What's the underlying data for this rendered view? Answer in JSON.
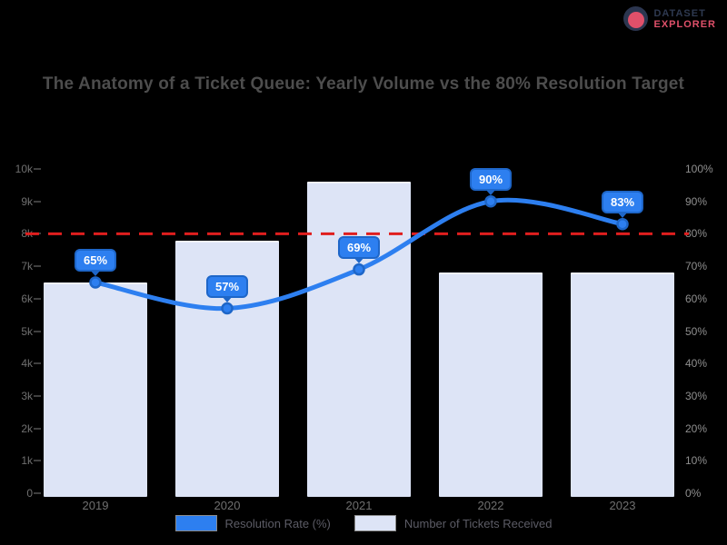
{
  "brand": {
    "line1": "DATASET",
    "line2": "EXPLORER",
    "colors": {
      "navy": "#2e3950",
      "red": "#e0506a"
    }
  },
  "title": "The Anatomy of a Ticket Queue: Yearly Volume vs the 80% Resolution Target",
  "chart_data": {
    "type": "bar",
    "subtype": "combo bar + smoothed line, dual axis",
    "categories": [
      "2019",
      "2020",
      "2021",
      "2022",
      "2023"
    ],
    "series": [
      {
        "name": "Resolution Rate (%)",
        "type": "line",
        "axis": "right",
        "values": [
          65,
          57,
          69,
          90,
          83
        ],
        "color": "#2d7ff0",
        "data_labels": [
          "65%",
          "57%",
          "69%",
          "90%",
          "83%"
        ]
      },
      {
        "name": "Number of Tickets Received",
        "type": "bar",
        "axis": "left",
        "values": [
          6500,
          7800,
          9600,
          6800,
          6800
        ],
        "color": "#dde4f6"
      }
    ],
    "target_line": {
      "value": 80,
      "axis": "right",
      "color": "#e01e1e",
      "style": "dashed"
    },
    "left_axis": {
      "min": 0,
      "max": 10000,
      "tick_step": 1000,
      "tick_labels_top_to_bottom": [
        "10k",
        "9k",
        "8k",
        "7k",
        "6k",
        "5k",
        "4k",
        "3k",
        "2k",
        "1k",
        "0"
      ]
    },
    "right_axis": {
      "min": 0,
      "max": 100,
      "tick_step": 10,
      "suffix": "%",
      "tick_labels_top_to_bottom": [
        "100%",
        "90%",
        "80%",
        "70%",
        "60%",
        "50%",
        "40%",
        "30%",
        "20%",
        "10%",
        "0%"
      ]
    },
    "grid": false,
    "background": "#000000",
    "legend_position": "bottom"
  },
  "legend": [
    {
      "label": "Resolution Rate (%)",
      "color": "#2d7ff0"
    },
    {
      "label": "Number of Tickets Received",
      "color": "#dde4f6"
    }
  ]
}
